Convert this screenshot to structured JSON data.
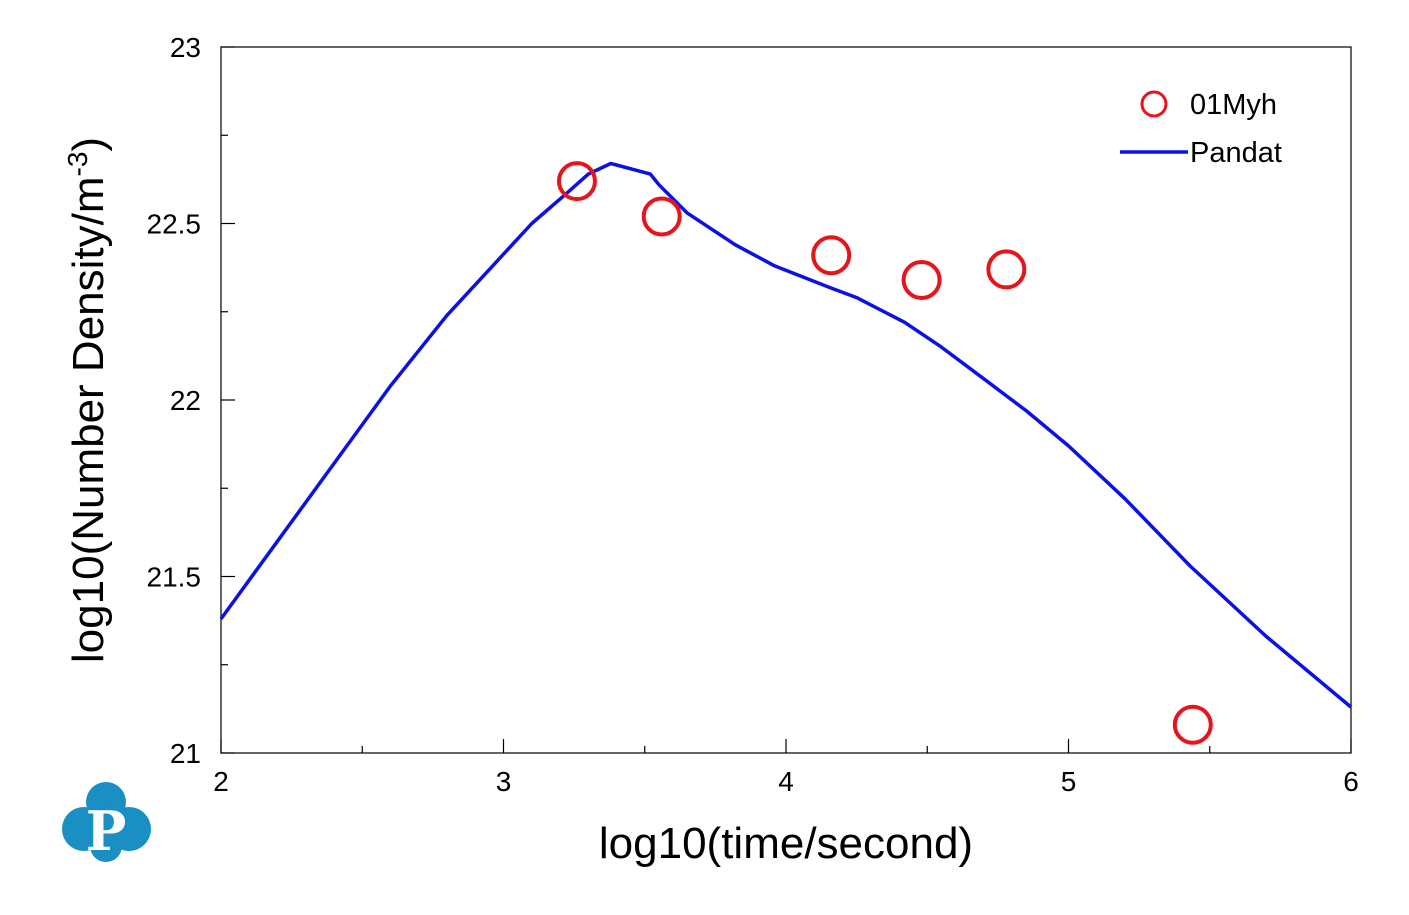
{
  "chart_data": {
    "type": "line",
    "xlabel": "log10(time/second)",
    "ylabel_main": "log10(Number Density/m",
    "ylabel_sup": "-3",
    "ylabel_close": ")",
    "xlim": [
      2,
      6
    ],
    "ylim": [
      21,
      23
    ],
    "x_ticks": [
      "2",
      "3",
      "4",
      "5",
      "6"
    ],
    "y_ticks": [
      "21",
      "21.5",
      "22",
      "22.5",
      "23"
    ],
    "legend_position": "top-right",
    "series": [
      {
        "name": "01Myh",
        "kind": "scatter",
        "marker": "open-circle",
        "color": "#e8141c",
        "x": [
          3.26,
          3.56,
          4.16,
          4.48,
          4.78,
          5.44
        ],
        "y": [
          22.62,
          22.52,
          22.41,
          22.34,
          22.37,
          21.08
        ]
      },
      {
        "name": "Pandat",
        "kind": "line",
        "color": "#0a10e6",
        "x": [
          2.0,
          2.2,
          2.4,
          2.6,
          2.8,
          2.95,
          3.1,
          3.23,
          3.3,
          3.38,
          3.52,
          3.55,
          3.65,
          3.82,
          3.96,
          4.15,
          4.25,
          4.42,
          4.55,
          4.7,
          4.85,
          5.0,
          5.2,
          5.43,
          5.7,
          6.0
        ],
        "y": [
          21.38,
          21.6,
          21.82,
          22.04,
          22.24,
          22.37,
          22.5,
          22.59,
          22.64,
          22.67,
          22.64,
          22.61,
          22.53,
          22.44,
          22.38,
          22.32,
          22.29,
          22.22,
          22.15,
          22.06,
          21.97,
          21.87,
          21.72,
          21.53,
          21.33,
          21.13
        ]
      }
    ]
  },
  "logo": {
    "letter": "P",
    "color": "#1a8fc4"
  }
}
